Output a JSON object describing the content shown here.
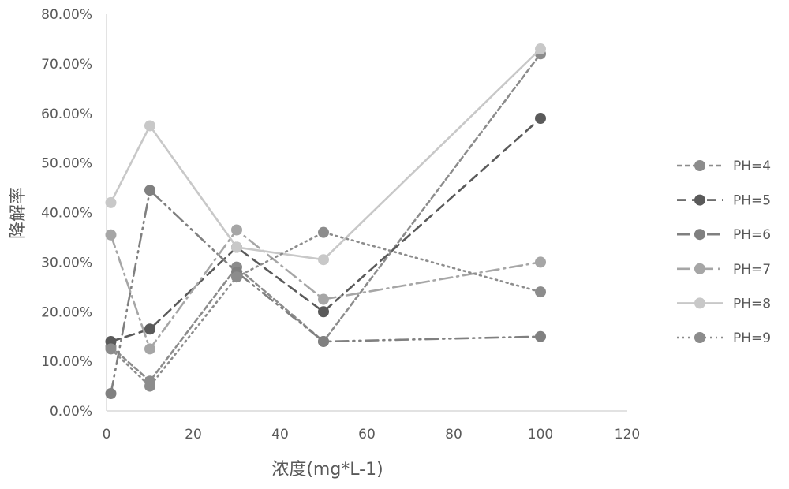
{
  "chart_data": {
    "type": "line",
    "title": "",
    "xlabel": "浓度(mg*L-1)",
    "ylabel": "降解率",
    "xlim": [
      0,
      120
    ],
    "ylim": [
      0,
      0.8
    ],
    "x_ticks": [
      "0",
      "20",
      "40",
      "60",
      "80",
      "100",
      "120"
    ],
    "y_ticks": [
      "0.00%",
      "10.00%",
      "20.00%",
      "30.00%",
      "40.00%",
      "50.00%",
      "60.00%",
      "70.00%",
      "80.00%"
    ],
    "grid": false,
    "legend_position": "right",
    "x": [
      1,
      10,
      30,
      50,
      100
    ],
    "series": [
      {
        "name": "PH=4",
        "values": [
          0.13,
          0.06,
          0.29,
          0.14,
          0.72
        ],
        "color": "#8c8c8c",
        "dash": "short-dash"
      },
      {
        "name": "PH=5",
        "values": [
          0.14,
          0.165,
          0.33,
          0.2,
          0.59
        ],
        "color": "#5a5a5a",
        "dash": "long-dash"
      },
      {
        "name": "PH=6",
        "values": [
          0.035,
          0.445,
          0.28,
          0.14,
          0.15
        ],
        "color": "#808080",
        "dash": "long-dash-dot-dot"
      },
      {
        "name": "PH=7",
        "values": [
          0.355,
          0.125,
          0.365,
          0.225,
          0.3
        ],
        "color": "#a6a6a6",
        "dash": "long-dash-dot"
      },
      {
        "name": "PH=8",
        "values": [
          0.42,
          0.575,
          0.33,
          0.305,
          0.73
        ],
        "color": "#c8c8c8",
        "dash": "solid"
      },
      {
        "name": "PH=9",
        "values": [
          0.125,
          0.05,
          0.27,
          0.36,
          0.24
        ],
        "color": "#8c8c8c",
        "dash": "dotted"
      }
    ]
  }
}
